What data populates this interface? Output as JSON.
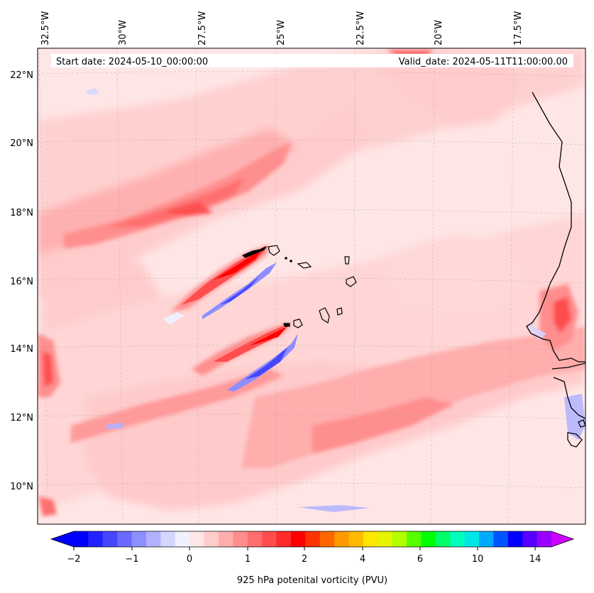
{
  "map": {
    "start_date_label": "Start date: 2024-05-10_00:00:00",
    "valid_date_label": "Valid_date: 2024-05-11T11:00:00.00",
    "lon_ticks": [
      "32.5°W",
      "30°W",
      "27.5°W",
      "25°W",
      "22.5°W",
      "20°W",
      "17.5°W"
    ],
    "lat_ticks": [
      "22°N",
      "20°N",
      "18°N",
      "16°N",
      "14°N",
      "12°N",
      "10°N"
    ]
  },
  "colorbar": {
    "label": "925 hPa potenital vorticity (PVU)",
    "tick_labels": [
      "−2",
      "−1",
      "0",
      "1",
      "2",
      "4",
      "6",
      "10",
      "14"
    ],
    "colors": [
      "#0000ff",
      "#2323ff",
      "#4646ff",
      "#6a6aff",
      "#8e8eff",
      "#b1b1ff",
      "#d5d5ff",
      "#f0f0ff",
      "#ffe6e6",
      "#ffcccc",
      "#ffadad",
      "#ff8e8e",
      "#ff6e6e",
      "#ff4d4d",
      "#ff2a2a",
      "#ff0000",
      "#ff3300",
      "#ff6600",
      "#ff9900",
      "#ffbb00",
      "#ffe600",
      "#e6f500",
      "#b3ff00",
      "#55ff00",
      "#00ff00",
      "#00ff66",
      "#00ffbb",
      "#00e6e6",
      "#00aaff",
      "#0055ff",
      "#0000ff",
      "#5500ff",
      "#9900ff"
    ],
    "extend_low_color": "#0000ff",
    "extend_high_color": "#cc00ff"
  }
}
